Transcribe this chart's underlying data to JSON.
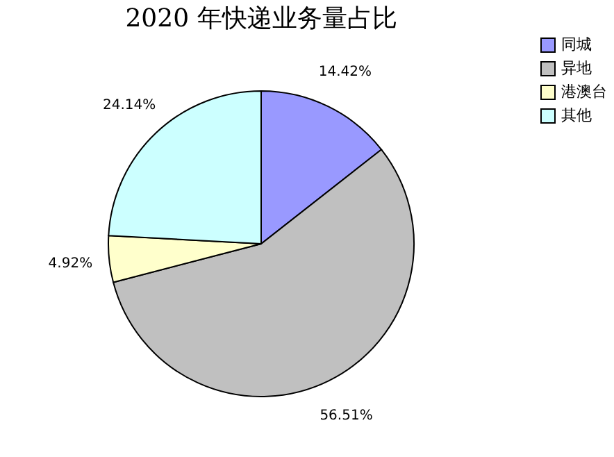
{
  "chart_data": {
    "type": "pie",
    "title": "2020 年快递业务量占比",
    "categories": [
      "同城",
      "异地",
      "港澳台",
      "其他"
    ],
    "values": [
      14.42,
      56.51,
      4.92,
      24.14
    ],
    "colors": [
      "#9999ff",
      "#c0c0c0",
      "#ffffcc",
      "#ccffff"
    ],
    "value_labels": [
      "14.42%",
      "56.51%",
      "4.92%",
      "24.14%"
    ],
    "legend": "right"
  }
}
